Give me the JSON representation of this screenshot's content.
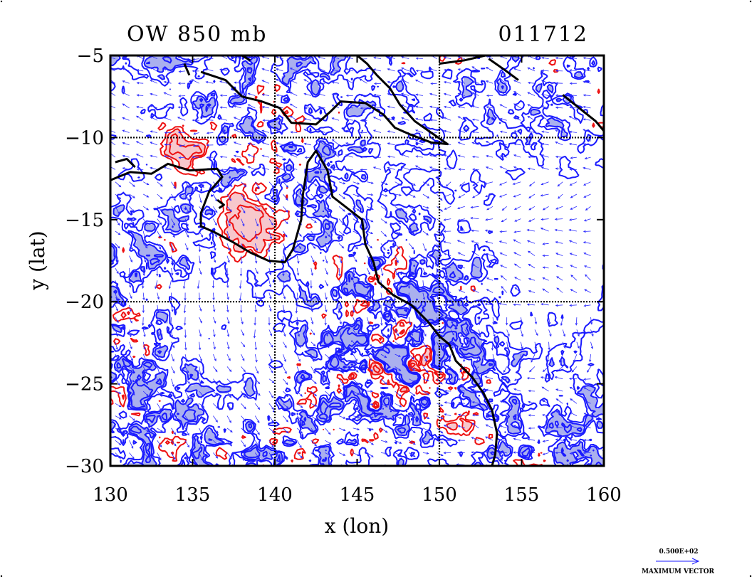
{
  "title_left": "OW 850 mb",
  "title_right": "011712",
  "x_axis": {
    "label": "x (lon)",
    "ticks": [
      "130",
      "135",
      "140",
      "145",
      "150",
      "155",
      "160"
    ],
    "range": [
      130,
      160
    ]
  },
  "y_axis": {
    "label": "y (lat)",
    "ticks": [
      "−5",
      "−10",
      "−15",
      "−20",
      "−25",
      "−30"
    ],
    "range": [
      -30,
      -5
    ]
  },
  "grid_lines": {
    "lon": [
      140,
      150
    ],
    "lat": [
      -10,
      -20
    ]
  },
  "vector_key": {
    "value": "0.500E+02",
    "caption": "MAXIMUM VECTOR"
  },
  "colors": {
    "negative_contour": "#1a1aff",
    "negative_fill": "#aab0ee",
    "positive_contour": "#ee1111",
    "positive_fill": "#f7c8cc",
    "coastline": "#000000"
  },
  "map": {
    "coastline": [
      [
        [
          130,
          -12.6
        ],
        [
          131.2,
          -12.1
        ],
        [
          132.5,
          -12.2
        ],
        [
          133.5,
          -11.6
        ],
        [
          134.8,
          -12.0
        ],
        [
          136.5,
          -11.9
        ],
        [
          136.8,
          -12.4
        ],
        [
          136.0,
          -13.3
        ],
        [
          135.5,
          -14.6
        ],
        [
          135.5,
          -15.4
        ],
        [
          136.4,
          -15.8
        ],
        [
          137.5,
          -16.4
        ],
        [
          138.5,
          -17.0
        ],
        [
          139.6,
          -17.5
        ],
        [
          140.6,
          -17.6
        ],
        [
          141.1,
          -16.8
        ],
        [
          141.6,
          -15.0
        ],
        [
          141.7,
          -13.5
        ],
        [
          142.0,
          -11.5
        ],
        [
          142.5,
          -10.8
        ],
        [
          143.2,
          -12.0
        ],
        [
          143.5,
          -13.6
        ],
        [
          144.4,
          -14.3
        ],
        [
          145.3,
          -15.0
        ],
        [
          145.5,
          -16.5
        ],
        [
          146.0,
          -17.6
        ],
        [
          146.3,
          -18.8
        ],
        [
          147.2,
          -19.6
        ],
        [
          148.3,
          -20.2
        ],
        [
          149.3,
          -21.2
        ],
        [
          150.0,
          -22.1
        ],
        [
          150.6,
          -22.6
        ],
        [
          151.0,
          -23.6
        ],
        [
          152.0,
          -24.6
        ],
        [
          152.7,
          -25.6
        ],
        [
          153.2,
          -26.6
        ],
        [
          153.5,
          -28.0
        ],
        [
          153.4,
          -29.3
        ],
        [
          153.2,
          -30
        ]
      ],
      [
        [
          135.5,
          -6.0
        ],
        [
          137.0,
          -6.5
        ],
        [
          138.0,
          -7.5
        ],
        [
          139.2,
          -7.8
        ],
        [
          140.3,
          -8.2
        ],
        [
          141.0,
          -9.1
        ],
        [
          142.5,
          -9.2
        ],
        [
          143.4,
          -8.4
        ],
        [
          144.0,
          -7.8
        ],
        [
          145.5,
          -7.9
        ],
        [
          146.6,
          -8.6
        ],
        [
          147.3,
          -9.4
        ],
        [
          148.2,
          -9.8
        ],
        [
          149.5,
          -10.3
        ],
        [
          150.5,
          -10.4
        ],
        [
          149.5,
          -9.7
        ],
        [
          148.5,
          -9.0
        ],
        [
          147.6,
          -8.0
        ],
        [
          147.0,
          -7.0
        ],
        [
          146.2,
          -6.2
        ],
        [
          145.6,
          -5.5
        ],
        [
          145.0,
          -5
        ]
      ],
      [
        [
          150.0,
          -5.5
        ],
        [
          151.5,
          -5.3
        ],
        [
          152.8,
          -5.0
        ]
      ],
      [
        [
          153.0,
          -5.2
        ],
        [
          154.0,
          -5.9
        ],
        [
          154.8,
          -6.5
        ]
      ],
      [
        [
          157.5,
          -7.4
        ],
        [
          158.5,
          -8.2
        ],
        [
          159.5,
          -9.0
        ],
        [
          160,
          -9.6
        ]
      ],
      [
        [
          134.5,
          -5.5
        ],
        [
          134.8,
          -6.2
        ]
      ],
      [
        [
          138.0,
          -5.0
        ],
        [
          138.5,
          -5.3
        ]
      ],
      [
        [
          130.3,
          -11.5
        ],
        [
          131.0,
          -11.3
        ],
        [
          131.5,
          -11.8
        ]
      ],
      [
        [
          136.5,
          -13.8
        ],
        [
          136.9,
          -14.1
        ],
        [
          136.6,
          -14.3
        ]
      ]
    ]
  }
}
